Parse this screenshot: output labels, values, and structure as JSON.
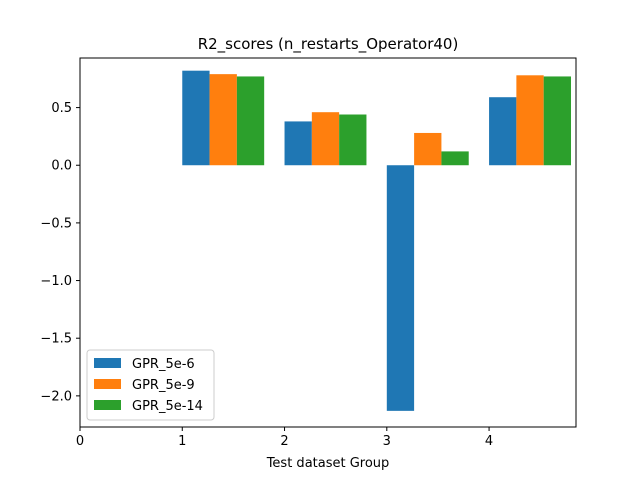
{
  "chart_data": {
    "type": "bar",
    "title": "R2_scores (n_restarts_Operator40)",
    "xlabel": "Test dataset Group",
    "ylabel": "",
    "xticks": [
      "0",
      "1",
      "2",
      "3",
      "4"
    ],
    "yticks": [
      "0.5",
      "0.0",
      "−0.5",
      "−1.0",
      "−1.5",
      "−2.0"
    ],
    "categories": [
      1,
      2,
      3,
      4
    ],
    "series": [
      {
        "name": "GPR_5e-6",
        "color": "#1f77b4",
        "values": [
          0.82,
          0.38,
          -2.13,
          0.59
        ]
      },
      {
        "name": "GPR_5e-9",
        "color": "#ff7f0e",
        "values": [
          0.79,
          0.46,
          0.28,
          0.78
        ]
      },
      {
        "name": "GPR_5e-14",
        "color": "#2ca02c",
        "values": [
          0.77,
          0.44,
          0.12,
          0.77
        ]
      }
    ],
    "xlim": [
      0,
      4.85
    ],
    "ylim": [
      -2.27,
      0.93
    ],
    "bar_width": 0.267,
    "legend_position": "lower-left",
    "grid": false
  }
}
